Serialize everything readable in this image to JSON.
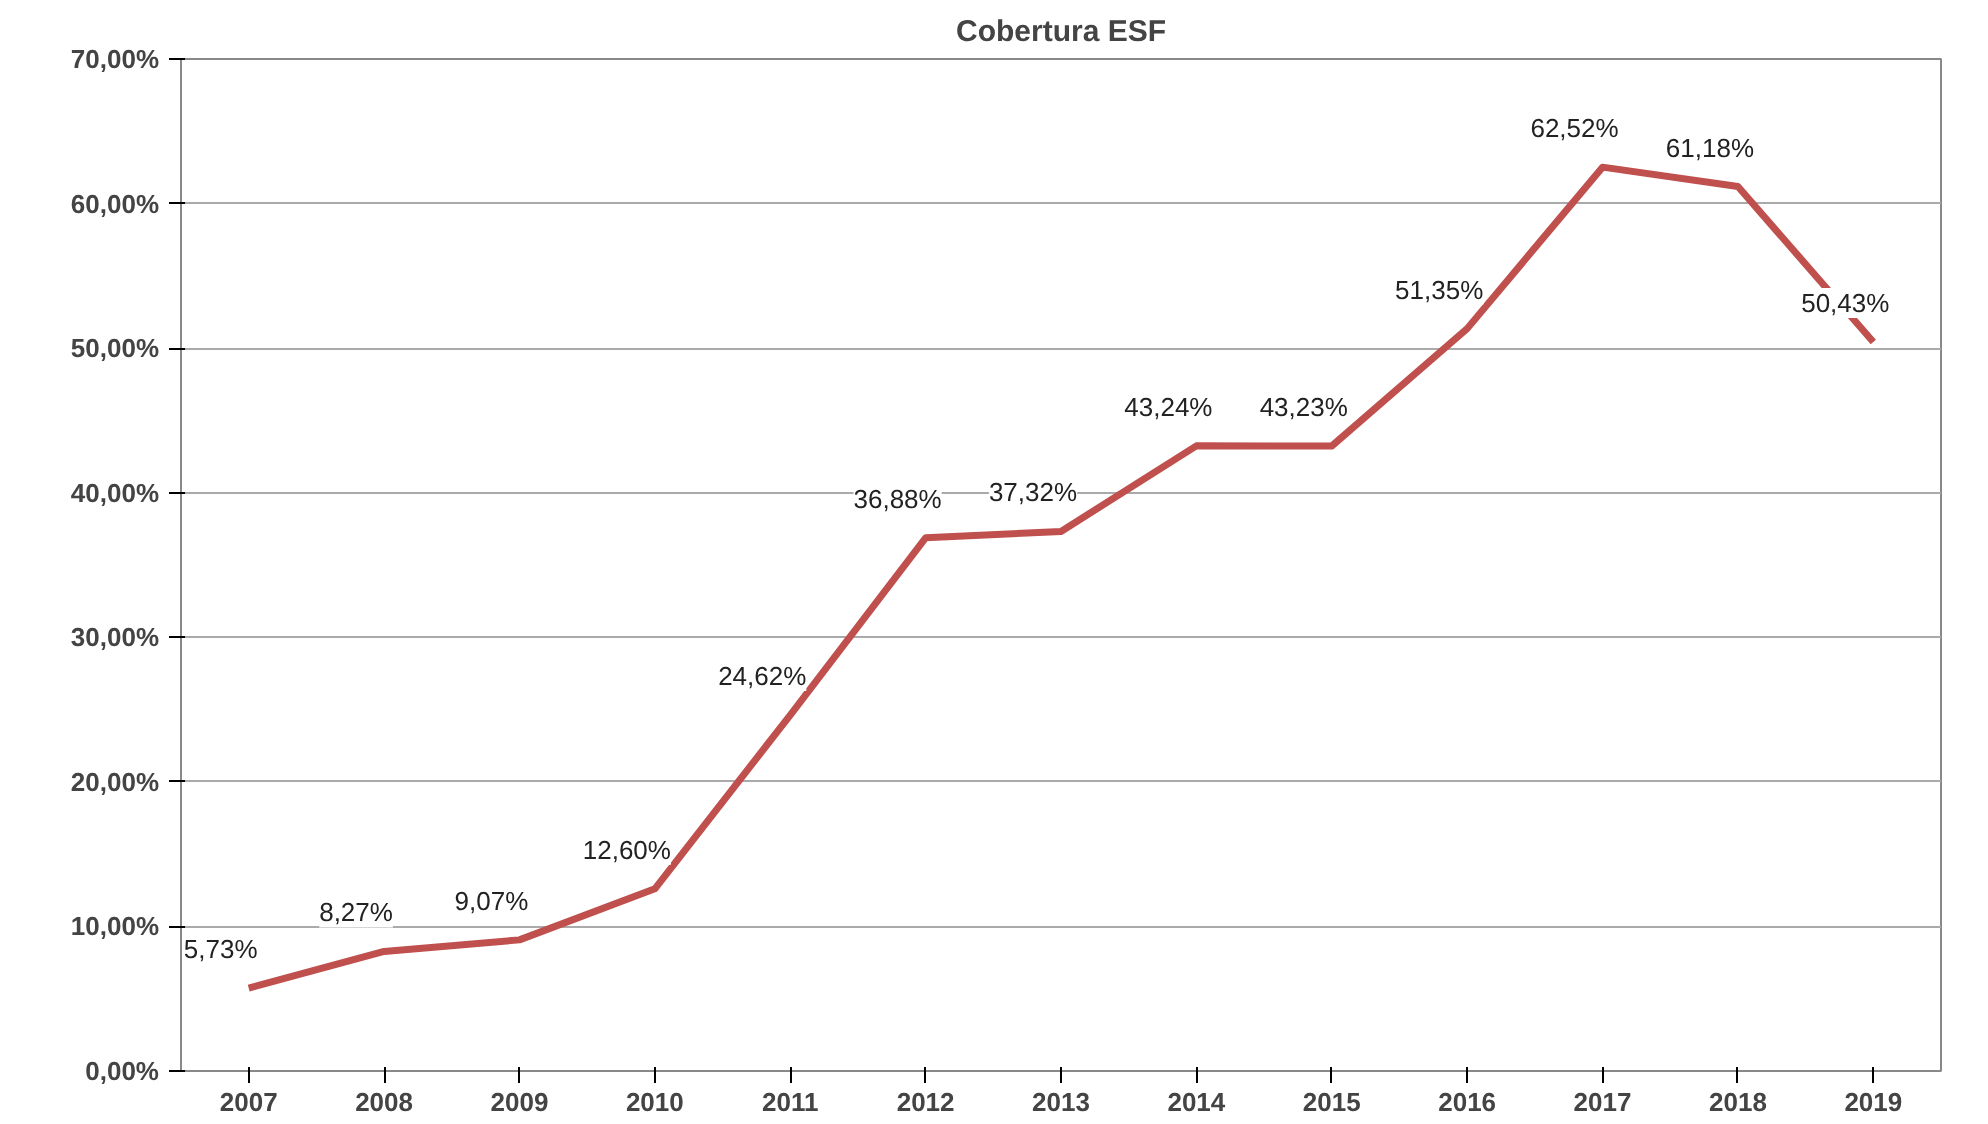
{
  "chart_data": {
    "type": "line",
    "title": "Cobertura ESF",
    "categories": [
      "2007",
      "2008",
      "2009",
      "2010",
      "2011",
      "2012",
      "2013",
      "2014",
      "2015",
      "2016",
      "2017",
      "2018",
      "2019"
    ],
    "series": [
      {
        "color": "#c0504d",
        "values": [
          5.73,
          8.27,
          9.07,
          12.6,
          24.62,
          36.88,
          37.32,
          43.24,
          43.23,
          51.35,
          62.52,
          61.18,
          50.43
        ],
        "value_labels": [
          "5,73%",
          "8,27%",
          "9,07%",
          "12,60%",
          "24,62%",
          "36,88%",
          "37,32%",
          "43,24%",
          "43,23%",
          "51,35%",
          "62,52%",
          "61,18%",
          "50,43%"
        ]
      }
    ],
    "ylim": [
      0,
      70
    ],
    "yticks": [
      {
        "value": 0,
        "label": "0,00%"
      },
      {
        "value": 10,
        "label": "10,00%"
      },
      {
        "value": 20,
        "label": "20,00%"
      },
      {
        "value": 30,
        "label": "30,00%"
      },
      {
        "value": 40,
        "label": "40,00%"
      },
      {
        "value": 50,
        "label": "50,00%"
      },
      {
        "value": 60,
        "label": "60,00%"
      },
      {
        "value": 70,
        "label": "70,00%"
      }
    ],
    "grid": "y",
    "marker": "none",
    "line_style": "solid"
  }
}
